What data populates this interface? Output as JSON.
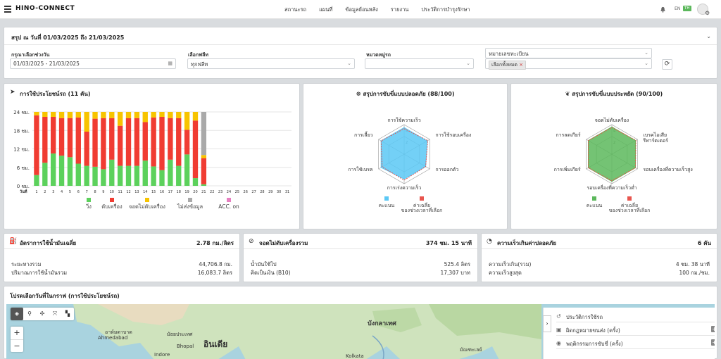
{
  "app": {
    "brand": "HINO-CONNECT",
    "nav": [
      "สถานะรถ",
      "แผนที่",
      "ข้อมูลย้อนหลัง",
      "รายงาน",
      "ประวัติการบำรุงรักษา"
    ],
    "lang": "EN",
    "lang_badge": "TH"
  },
  "summary": {
    "title": "สรุป ณ วันที่ 01/03/2025 ถึง 21/03/2025",
    "date_label": "กรุณาเลือกช่วงวัน",
    "date_value": "01/03/2025 - 21/03/2025",
    "fleet_label": "เลือกฟลีท",
    "fleet_value": "ทุกฟลีท",
    "group_label": "หมวดหมู่รถ",
    "group_value": "",
    "plate_placeholder": "หมายเลขทะเบียน",
    "plate_tag": "เลือกทั้งหมด"
  },
  "usage": {
    "title": "การใช้ประโยชน์รถ (11 คัน)",
    "legend": [
      "วิ่ง",
      "ดับเครื่อง",
      "จอดไม่ดับเครื่อง",
      "ไม่ส่งข้อมูล",
      "ACC. on"
    ]
  },
  "chart_data": [
    {
      "type": "bar",
      "title": "การใช้ประโยชน์รถ (11 คัน)",
      "xlabel": "วันที่",
      "ylabel": "",
      "ylim": [
        0,
        24
      ],
      "yticks": [
        "0 ชม.",
        "6 ชม.",
        "12 ชม.",
        "18 ชม.",
        "24 ชม."
      ],
      "categories": [
        "1",
        "2",
        "3",
        "4",
        "5",
        "6",
        "7",
        "8",
        "9",
        "10",
        "11",
        "12",
        "13",
        "14",
        "15",
        "16",
        "17",
        "18",
        "19",
        "20",
        "21",
        "22",
        "23",
        "24",
        "25",
        "26",
        "27",
        "28",
        "29",
        "30",
        "31"
      ],
      "series": [
        {
          "name": "วิ่ง",
          "color": "#5cd15c",
          "values": [
            3.5,
            7.5,
            10.5,
            9.8,
            9.3,
            7.2,
            6.5,
            6.2,
            5.4,
            8.5,
            6.5,
            6.5,
            6.5,
            8.2,
            6.3,
            5.1,
            8.5,
            6.5,
            10.2,
            2.5,
            0.5,
            0,
            0,
            0,
            0,
            0,
            0,
            0,
            0,
            0,
            0
          ]
        },
        {
          "name": "ดับเครื่อง",
          "color": "#f03c32",
          "values": [
            19.4,
            14.9,
            11.9,
            12.2,
            12.7,
            15.0,
            11.1,
            15.6,
            16.6,
            13.5,
            13.0,
            15.5,
            15.5,
            12.5,
            15.9,
            17.3,
            13.5,
            15.5,
            8.0,
            18.7,
            8.5,
            0,
            0,
            0,
            0,
            0,
            0,
            0,
            0,
            0,
            0
          ]
        },
        {
          "name": "จอดไม่ดับเครื่อง",
          "color": "#f7c400",
          "values": [
            1.1,
            1.6,
            1.6,
            2.0,
            2.0,
            1.8,
            6.4,
            2.2,
            2.0,
            2.0,
            4.5,
            2.0,
            2.0,
            3.3,
            1.8,
            1.6,
            2.0,
            2.0,
            5.8,
            2.8,
            1.0,
            0,
            0,
            0,
            0,
            0,
            0,
            0,
            0,
            0,
            0
          ]
        },
        {
          "name": "ไม่ส่งข้อมูล",
          "color": "#a9a9a9",
          "values": [
            0,
            0,
            0,
            0,
            0,
            0,
            0,
            0,
            0,
            0,
            0,
            0,
            0,
            0,
            0,
            0,
            0,
            0,
            0,
            0,
            14.0,
            0,
            0,
            0,
            0,
            0,
            0,
            0,
            0,
            0,
            0
          ]
        },
        {
          "name": "ACC. on",
          "color": "#e77fc1",
          "values": [
            0,
            0,
            0,
            0,
            0,
            0,
            0,
            0,
            0,
            0,
            0,
            0,
            0,
            0,
            0,
            0,
            0,
            0,
            0,
            0,
            0,
            0,
            0,
            0,
            0,
            0,
            0,
            0,
            0,
            0,
            0
          ]
        }
      ],
      "grid": true,
      "legend": "bottom"
    },
    {
      "type": "radar",
      "title": "สรุปการขับขี่แบบปลอดภัย (88/100)",
      "axes": [
        "การใช้ความเร็ว",
        "การใช้รอบเครื่อง",
        "การออกตัว",
        "การเร่งความเร็ว",
        "การใช้เบรค",
        "การเลี้ยว"
      ],
      "ticks": [
        2,
        4
      ],
      "rmax": 5,
      "series": [
        {
          "name": "คะแนน",
          "color": "#5bc8f5",
          "values": [
            4.5,
            4.5,
            4.2,
            4.2,
            4.5,
            4.5
          ]
        },
        {
          "name": "ค่าเฉลี่ยของช่วงเวลาที่เลือก",
          "color": "#e8554e",
          "values": [
            4.3,
            4.6,
            4.2,
            4.4,
            4.3,
            4.5
          ]
        }
      ],
      "legend": "bottom"
    },
    {
      "type": "radar",
      "title": "สรุปการขับขี่แบบประหยัด (90/100)",
      "axes": [
        "จอดไม่ดับเครื่อง",
        "เบรคไอเสีย รีทาร์ดเดอร์",
        "รอบเครื่องที่ความเร็วสูง",
        "รอบเครื่องที่ความเร็วต่ำ",
        "การเพิ่มเกียร์",
        "การลดเกียร์"
      ],
      "ticks": [
        2,
        4
      ],
      "rmax": 5,
      "series": [
        {
          "name": "คะแนน",
          "color": "#5cb85c",
          "values": [
            4.6,
            4.6,
            4.6,
            4.6,
            4.6,
            4.6
          ]
        },
        {
          "name": "ค่าเฉลี่ยของช่วงเวลาที่เลือก",
          "color": "#e8554e",
          "values": [
            4.5,
            4.7,
            4.6,
            4.5,
            4.6,
            4.6
          ]
        }
      ],
      "legend": "bottom"
    }
  ],
  "safe": {
    "title": "สรุปการขับขี่แบบปลอดภัย (88/100)"
  },
  "eco": {
    "title": "สรุปการขับขี่แบบประหยัด (90/100)"
  },
  "stats": {
    "fuel": {
      "title": "อัตราการใช้น้ำมันเฉลี่ย",
      "value": "2.78 กม./ลิตร",
      "r1": "ระยะทางรวม",
      "v1": "44,706.8 กม.",
      "r2": "ปริมาณการใช้น้ำมันรวม",
      "v2": "16,083.7 ลิตร"
    },
    "idle": {
      "title": "จอดไม่ดับเครื่องรวม",
      "value": "374 ชม. 15 นาที",
      "r1": "น้ำมันใช้ไป",
      "v1": "525.4 ลิตร",
      "r2": "คิดเป็นเงิน (B10)",
      "v2": "17,307 บาท"
    },
    "speed": {
      "title": "ความเร็วเกินค่าปลอดภัย",
      "value": "6 คัน",
      "r1": "ความเร็วเกิน(รวม)",
      "v1": "4 ชม. 38 นาที",
      "r2": "ความเร็วสูงสุด",
      "v2": "100 กม./ชม."
    }
  },
  "map": {
    "title": "โปรดเลือกวันที่ในกราฟ (การใช้ประโยชน์รถ)",
    "labels": {
      "ahmedabad_th": "อาห์มดาบาด",
      "ahmedabad": "Ahmedabad",
      "bhopal_th": "มัธยประเทศ",
      "bhopal": "Bhopal",
      "india": "อินเดีย",
      "indore": "Indore",
      "bangladesh": "บังกลาเทศ",
      "kolkata": "Kolkata",
      "myanmar": "มัณฑะเลย์"
    },
    "side": [
      {
        "label": "ประวัติการใช้รถ"
      },
      {
        "label": "ผิดกฎหมายขนส่ง (ครั้ง)"
      },
      {
        "label": "พฤติกรรมการขับขี่ (ครั้ง)"
      }
    ]
  }
}
